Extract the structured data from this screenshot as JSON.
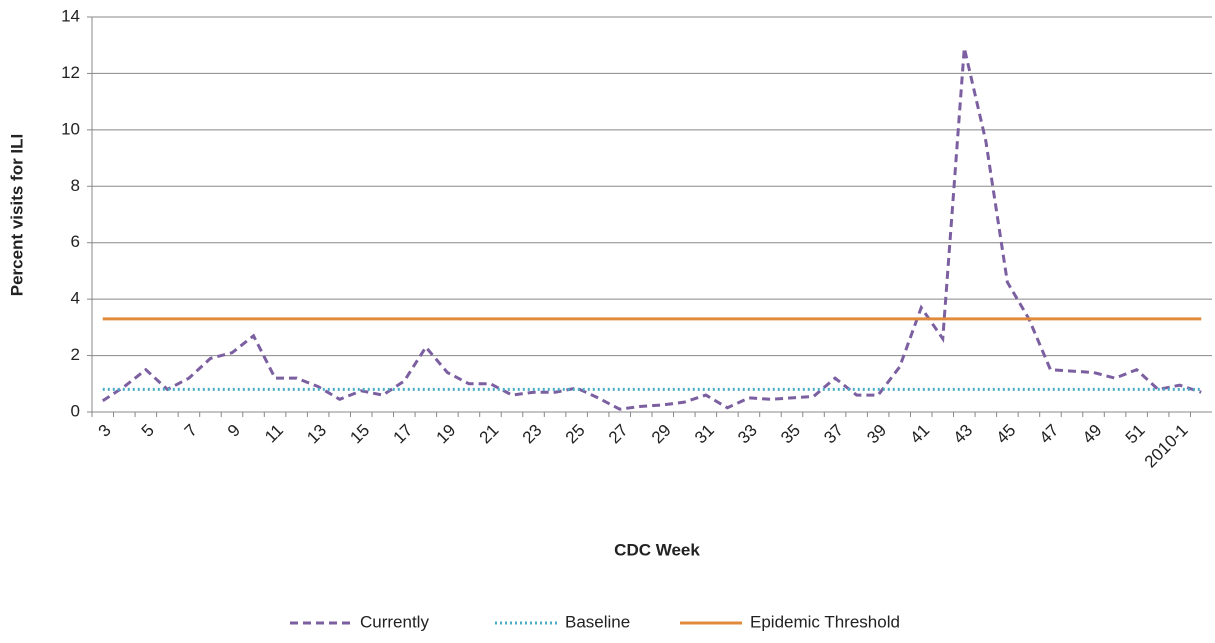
{
  "chart_data": {
    "type": "line",
    "x_label": "CDC Week",
    "y_label": "Percent visits for ILI",
    "categories": [
      "3",
      null,
      "5",
      null,
      "7",
      null,
      "9",
      null,
      "11",
      null,
      "13",
      null,
      "15",
      null,
      "17",
      null,
      "19",
      null,
      "21",
      null,
      "23",
      null,
      "25",
      null,
      "27",
      null,
      "29",
      null,
      "31",
      null,
      "33",
      null,
      "35",
      null,
      "37",
      null,
      "39",
      null,
      "41",
      null,
      "43",
      null,
      "45",
      null,
      "47",
      null,
      "49",
      null,
      "51",
      null,
      "2010-1",
      null
    ],
    "series": [
      {
        "name": "Currently",
        "color": "#7b5fa0",
        "dash": "8,5",
        "values": [
          0.4,
          0.9,
          1.5,
          0.8,
          1.2,
          1.9,
          2.1,
          2.7,
          1.2,
          1.2,
          0.9,
          0.45,
          0.75,
          0.6,
          1.1,
          2.3,
          1.4,
          1.0,
          1.0,
          0.6,
          0.7,
          0.7,
          0.85,
          0.5,
          0.1,
          0.2,
          0.25,
          0.35,
          0.6,
          0.15,
          0.5,
          0.45,
          0.5,
          0.55,
          1.2,
          0.6,
          0.6,
          1.6,
          3.7,
          2.6,
          12.9,
          9.6,
          4.6,
          3.3,
          1.5,
          1.45,
          1.4,
          1.2,
          1.5,
          0.8,
          0.95,
          0.7
        ]
      },
      {
        "name": "Baseline",
        "color": "#4bacc6",
        "dash": "2,3",
        "values": [
          0.8,
          0.8,
          0.8,
          0.8,
          0.8,
          0.8,
          0.8,
          0.8,
          0.8,
          0.8,
          0.8,
          0.8,
          0.8,
          0.8,
          0.8,
          0.8,
          0.8,
          0.8,
          0.8,
          0.8,
          0.8,
          0.8,
          0.8,
          0.8,
          0.8,
          0.8,
          0.8,
          0.8,
          0.8,
          0.8,
          0.8,
          0.8,
          0.8,
          0.8,
          0.8,
          0.8,
          0.8,
          0.8,
          0.8,
          0.8,
          0.8,
          0.8,
          0.8,
          0.8,
          0.8,
          0.8,
          0.8,
          0.8,
          0.8,
          0.8,
          0.8,
          0.8
        ]
      },
      {
        "name": "Epidemic Threshold",
        "color": "#e08a3c",
        "dash": "none",
        "values": [
          3.3,
          3.3,
          3.3,
          3.3,
          3.3,
          3.3,
          3.3,
          3.3,
          3.3,
          3.3,
          3.3,
          3.3,
          3.3,
          3.3,
          3.3,
          3.3,
          3.3,
          3.3,
          3.3,
          3.3,
          3.3,
          3.3,
          3.3,
          3.3,
          3.3,
          3.3,
          3.3,
          3.3,
          3.3,
          3.3,
          3.3,
          3.3,
          3.3,
          3.3,
          3.3,
          3.3,
          3.3,
          3.3,
          3.3,
          3.3,
          3.3,
          3.3,
          3.3,
          3.3,
          3.3,
          3.3,
          3.3,
          3.3,
          3.3,
          3.3,
          3.3,
          3.3
        ]
      }
    ],
    "ylim": [
      0,
      14
    ],
    "yticks": [
      0,
      2,
      4,
      6,
      8,
      10,
      12,
      14
    ],
    "grid": true,
    "legend": "bottom"
  }
}
